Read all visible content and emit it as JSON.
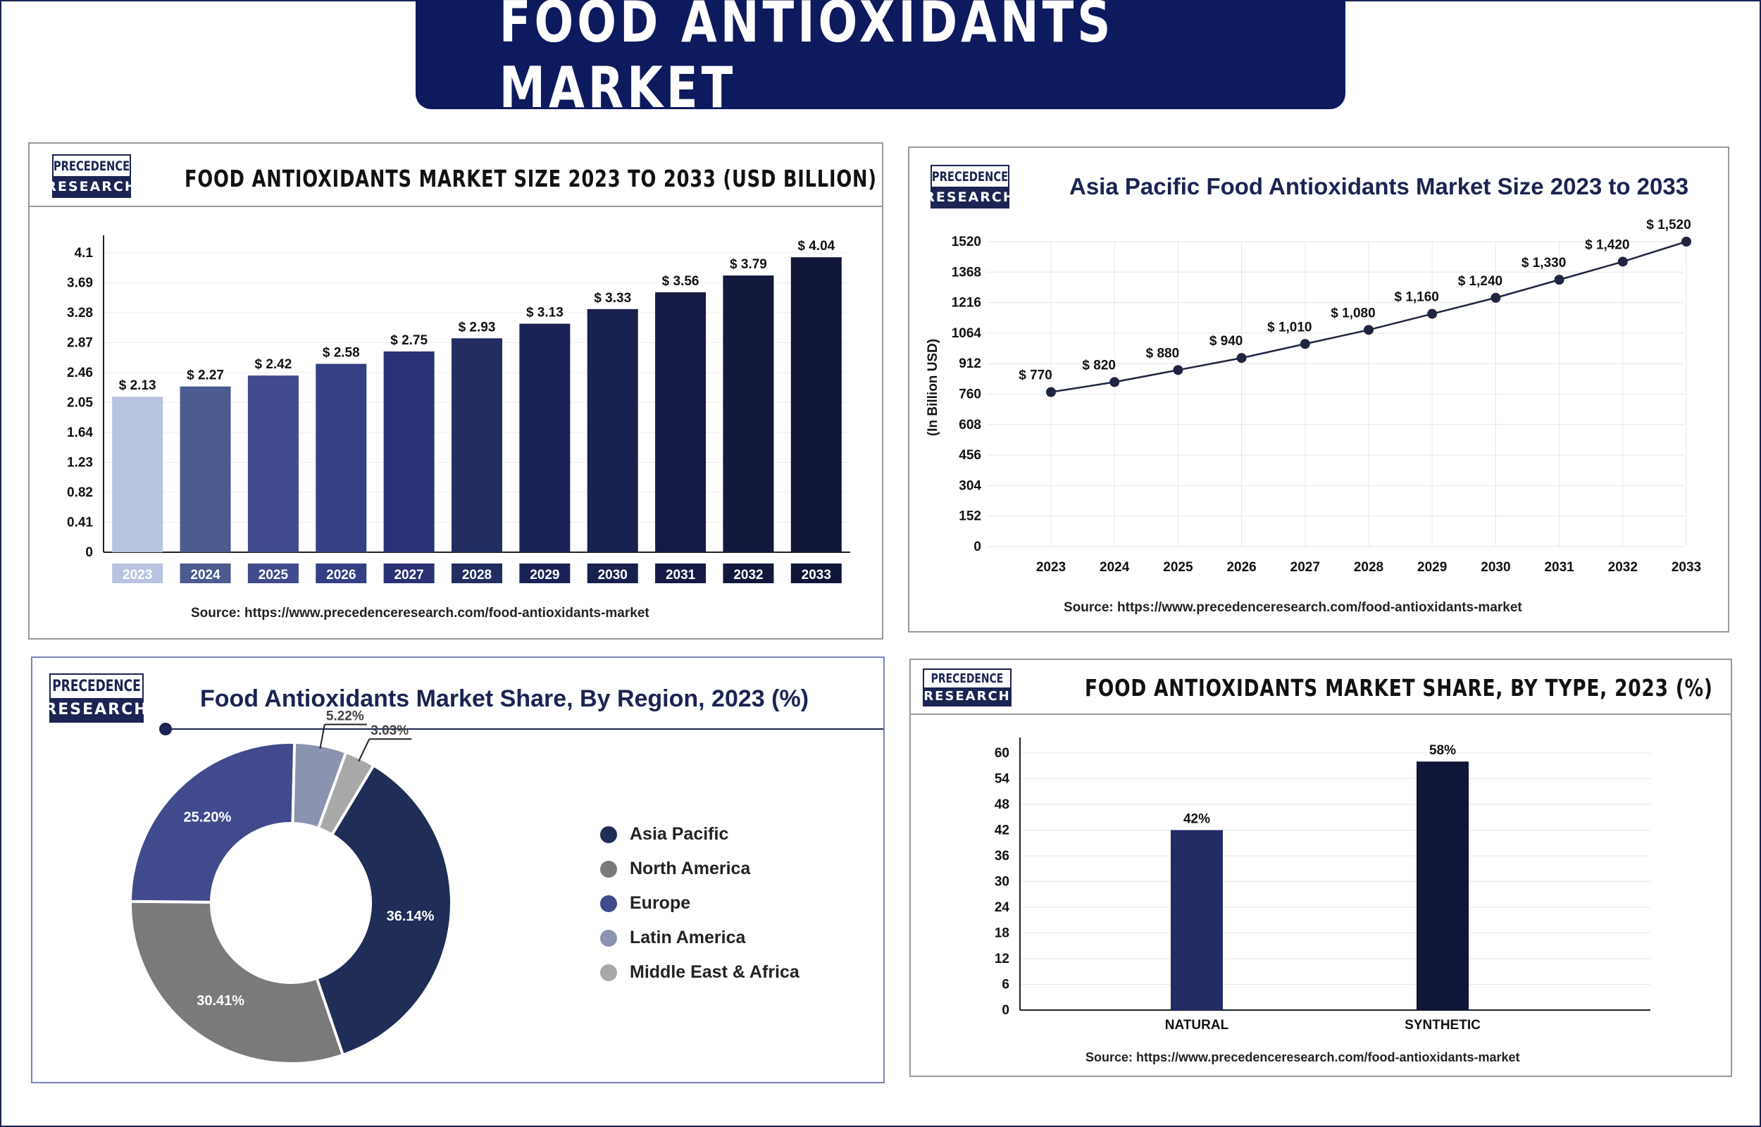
{
  "page_title": "FOOD ANTIOXIDANTS MARKET",
  "logo": {
    "line1": "PRECEDENCE",
    "line2": "RESEARCH"
  },
  "colors": {
    "navy": "#0e1a5e",
    "dark": "#101637"
  },
  "source_text": "Source: https://www.precedenceresearch.com/food-antioxidants-market",
  "chart_data": [
    {
      "type": "bar",
      "title": "FOOD ANTIOXIDANTS MARKET SIZE 2023 TO 2033 (USD BILLION)",
      "categories": [
        "2023",
        "2024",
        "2025",
        "2026",
        "2027",
        "2028",
        "2029",
        "2030",
        "2031",
        "2032",
        "2033"
      ],
      "values": [
        2.13,
        2.27,
        2.42,
        2.58,
        2.75,
        2.93,
        3.13,
        3.33,
        3.56,
        3.79,
        4.04
      ],
      "labels": [
        "$ 2.13",
        "$ 2.27",
        "$ 2.42",
        "$ 2.58",
        "$ 2.75",
        "$ 2.93",
        "$ 3.13",
        "$ 3.33",
        "$ 3.56",
        "$ 3.79",
        "$ 4.04"
      ],
      "ticks": [
        "0",
        "0.41",
        "0.82",
        "1.23",
        "1.64",
        "2.05",
        "2.46",
        "2.87",
        "3.28",
        "3.69",
        "4.1"
      ],
      "ylim": [
        0,
        4.1
      ],
      "bar_colors": [
        "#b8c3e0",
        "#4b5a8f",
        "#414a8c",
        "#343f84",
        "#2a3175",
        "#222e62",
        "#1a2255",
        "#18204d",
        "#151b45",
        "#12183c",
        "#101637"
      ]
    },
    {
      "type": "line",
      "title": "Asia Pacific Food Antioxidants Market Size 2023 to 2033",
      "ylabel": "(In Billion USD)",
      "categories": [
        "2023",
        "2024",
        "2025",
        "2026",
        "2027",
        "2028",
        "2029",
        "2030",
        "2031",
        "2032",
        "2033"
      ],
      "values": [
        770,
        820,
        880,
        940,
        1010,
        1080,
        1160,
        1240,
        1330,
        1420,
        1520
      ],
      "labels": [
        "$ 770",
        "$ 820",
        "$ 880",
        "$ 940",
        "$ 1,010",
        "$ 1,080",
        "$ 1,160",
        "$ 1,240",
        "$ 1,330",
        "$ 1,420",
        "$ 1,520"
      ],
      "ticks": [
        "0",
        "152",
        "304",
        "456",
        "608",
        "760",
        "912",
        "1064",
        "1216",
        "1368",
        "1520"
      ],
      "ylim": [
        0,
        1520
      ],
      "grid": true
    },
    {
      "type": "pie",
      "title": "Food Antioxidants Market Share, By Region, 2023 (%)",
      "slices": [
        {
          "name": "Asia Pacific",
          "value": 36.14,
          "label": "36.14%",
          "color": "#1f2d57"
        },
        {
          "name": "North America",
          "value": 30.41,
          "label": "30.41%",
          "color": "#7a7a7a"
        },
        {
          "name": "Europe",
          "value": 25.2,
          "label": "25.20%",
          "color": "#414a8c"
        },
        {
          "name": "Latin America",
          "value": 5.22,
          "label": "5.22%",
          "color": "#8a93b0"
        },
        {
          "name": "Middle East & Africa",
          "value": 3.03,
          "label": "3.03%",
          "color": "#a8a8a8"
        }
      ],
      "legend": "right"
    },
    {
      "type": "bar",
      "title": "FOOD ANTIOXIDANTS MARKET SHARE, BY TYPE, 2023 (%)",
      "categories": [
        "NATURAL",
        "SYNTHETIC"
      ],
      "values": [
        42,
        58
      ],
      "labels": [
        "42%",
        "58%"
      ],
      "ticks": [
        "0",
        "6",
        "12",
        "18",
        "24",
        "30",
        "36",
        "42",
        "48",
        "54",
        "60"
      ],
      "ylim": [
        0,
        60
      ],
      "bar_colors": [
        "#232b64",
        "#101637"
      ]
    }
  ]
}
